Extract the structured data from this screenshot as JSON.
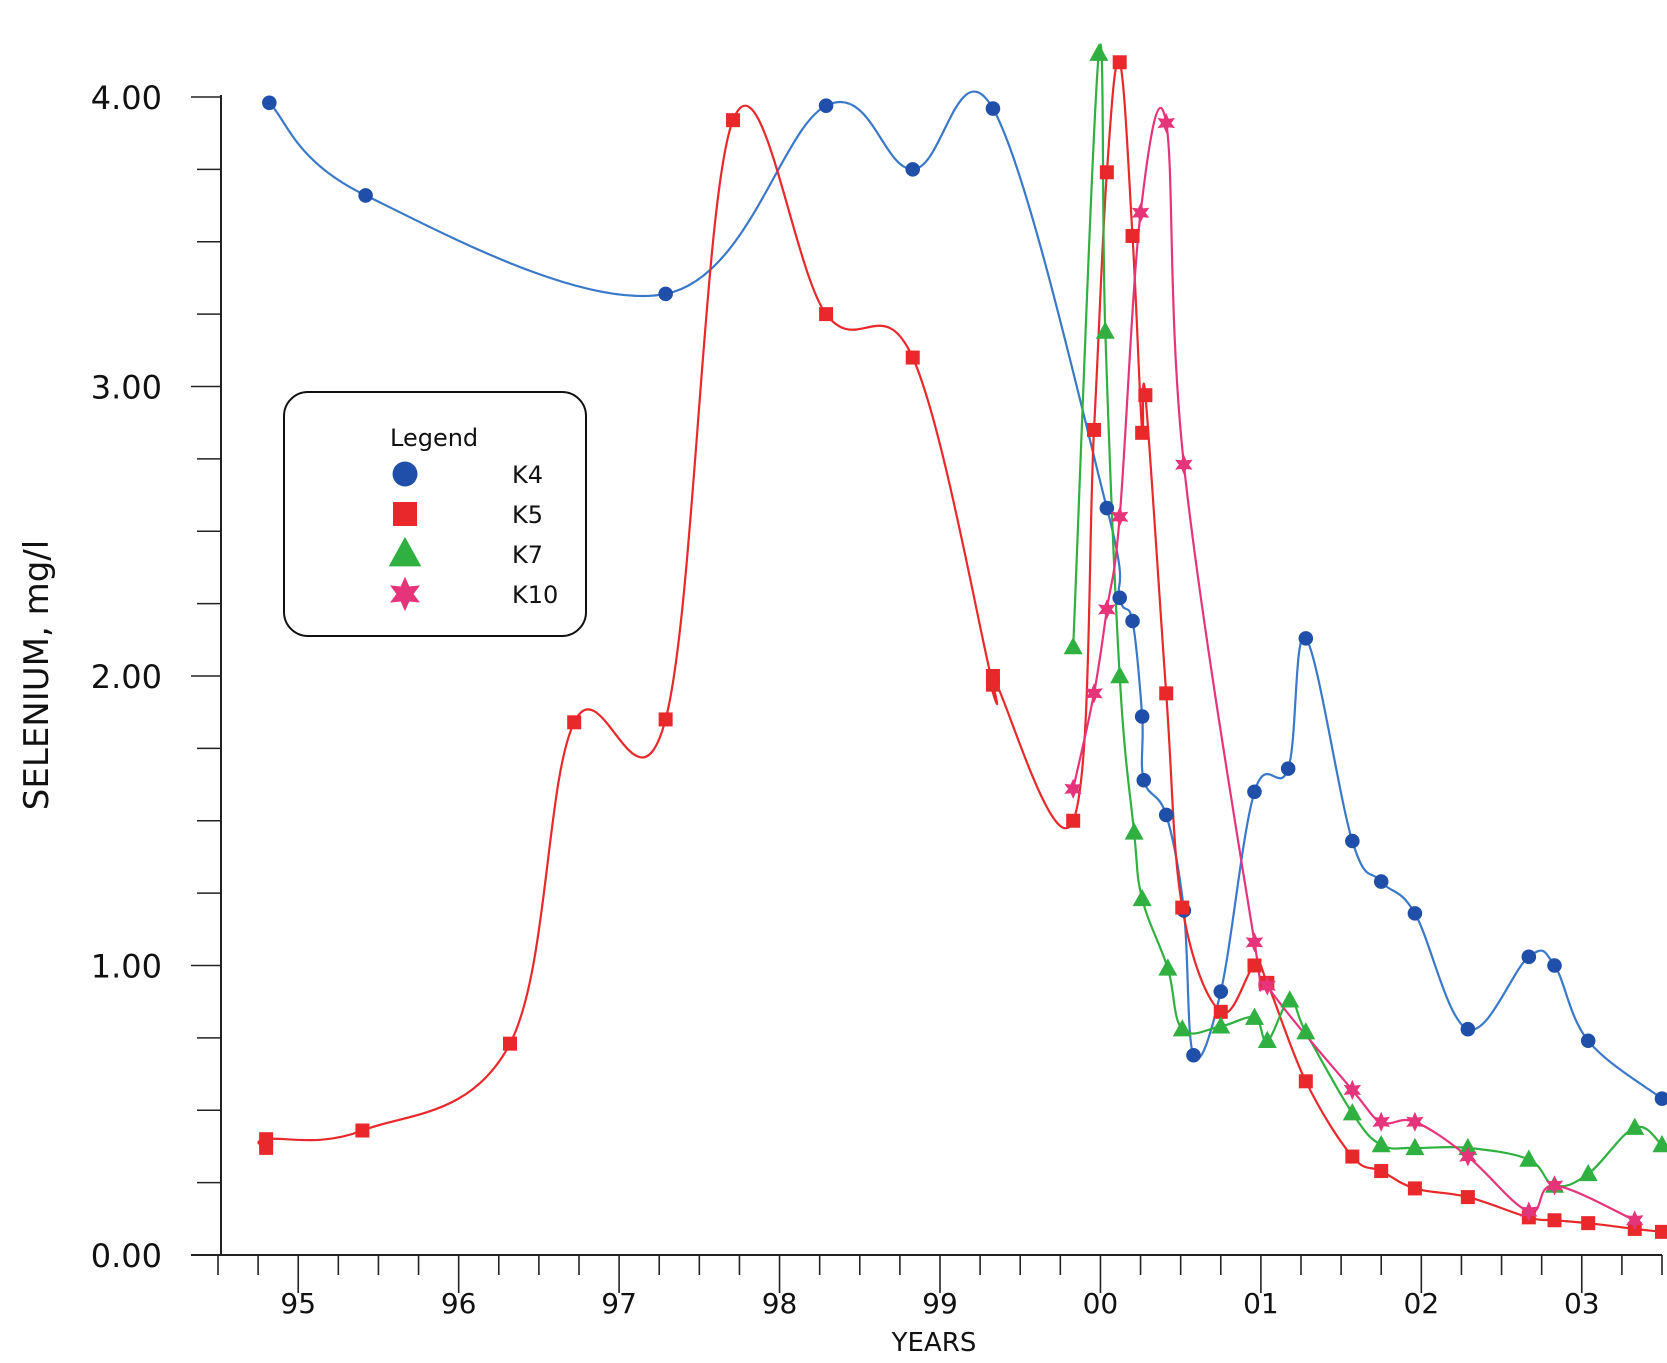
{
  "chart_data": {
    "type": "line",
    "title": "",
    "xlabel": "YEARS",
    "ylabel": "SELENIUM, mg/l",
    "ylim": [
      0,
      4.3
    ],
    "y_ticks": [
      "0.00",
      "1.00",
      "2.00",
      "3.00",
      "4.00"
    ],
    "xlim": [
      1994.5,
      2003.5
    ],
    "x_ticks": [
      "95",
      "96",
      "97",
      "98",
      "99",
      "00",
      "01",
      "02",
      "03"
    ],
    "grid": false,
    "legend": {
      "title": "Legend",
      "position": "left-middle"
    },
    "series": [
      {
        "name": "K4",
        "color": "#1f4fa8",
        "line_color": "#3a78c8",
        "marker": "circle",
        "x": [
          1994.82,
          1995.42,
          1997.29,
          1998.29,
          1998.83,
          1999.33,
          2000.04,
          2000.12,
          2000.2,
          2000.26,
          2000.27,
          2000.41,
          2000.52,
          2000.58,
          2000.75,
          2000.96,
          2001.17,
          2001.28,
          2001.57,
          2001.75,
          2001.96,
          2002.29,
          2002.67,
          2002.83,
          2003.04,
          2003.5
        ],
        "y": [
          3.98,
          3.66,
          3.32,
          3.97,
          3.75,
          3.96,
          2.58,
          2.27,
          2.19,
          1.86,
          1.64,
          1.52,
          1.19,
          0.69,
          0.91,
          1.6,
          1.68,
          2.13,
          1.43,
          1.29,
          1.18,
          0.78,
          1.03,
          1.0,
          0.74,
          0.54
        ]
      },
      {
        "name": "K5",
        "color": "#e8282a",
        "line_color": "#e8282a",
        "marker": "square",
        "x": [
          1994.8,
          1994.8,
          1995.4,
          1996.32,
          1996.72,
          1997.29,
          1997.71,
          1998.29,
          1998.83,
          1999.33,
          1999.33,
          1999.83,
          1999.96,
          2000.04,
          2000.12,
          2000.2,
          2000.26,
          2000.28,
          2000.41,
          2000.51,
          2000.75,
          2000.96,
          2001.04,
          2001.28,
          2001.57,
          2001.75,
          2001.96,
          2002.29,
          2002.67,
          2002.83,
          2003.04,
          2003.33,
          2003.5
        ],
        "y": [
          0.37,
          0.4,
          0.43,
          0.73,
          1.84,
          1.85,
          3.92,
          3.25,
          3.1,
          1.97,
          2.0,
          1.5,
          2.85,
          3.74,
          4.12,
          3.52,
          2.84,
          2.97,
          1.94,
          1.2,
          0.84,
          1.0,
          0.94,
          0.6,
          0.34,
          0.29,
          0.23,
          0.2,
          0.13,
          0.12,
          0.11,
          0.09,
          0.08
        ]
      },
      {
        "name": "K7",
        "color": "#2fb040",
        "line_color": "#2fb040",
        "marker": "triangle",
        "x": [
          1999.83,
          1999.99,
          2000.03,
          2000.12,
          2000.21,
          2000.26,
          2000.42,
          2000.51,
          2000.75,
          2000.96,
          2001.04,
          2001.18,
          2001.28,
          2001.57,
          2001.75,
          2001.96,
          2002.29,
          2002.67,
          2002.83,
          2003.04,
          2003.33,
          2003.5
        ],
        "y": [
          2.1,
          4.15,
          3.19,
          2.0,
          1.46,
          1.23,
          0.99,
          0.78,
          0.79,
          0.82,
          0.74,
          0.88,
          0.77,
          0.49,
          0.38,
          0.37,
          0.37,
          0.33,
          0.24,
          0.28,
          0.44,
          0.38
        ]
      },
      {
        "name": "K10",
        "color": "#e6347a",
        "line_color": "#e6347a",
        "marker": "star",
        "x": [
          1999.83,
          1999.96,
          2000.04,
          2000.12,
          2000.25,
          2000.41,
          2000.52,
          2000.96,
          2001.04,
          2001.57,
          2001.75,
          2001.96,
          2002.29,
          2002.67,
          2002.83,
          2003.33
        ],
        "y": [
          1.61,
          1.94,
          2.23,
          2.55,
          3.6,
          3.91,
          2.73,
          1.08,
          0.93,
          0.57,
          0.46,
          0.46,
          0.34,
          0.15,
          0.24,
          0.12
        ]
      }
    ]
  }
}
